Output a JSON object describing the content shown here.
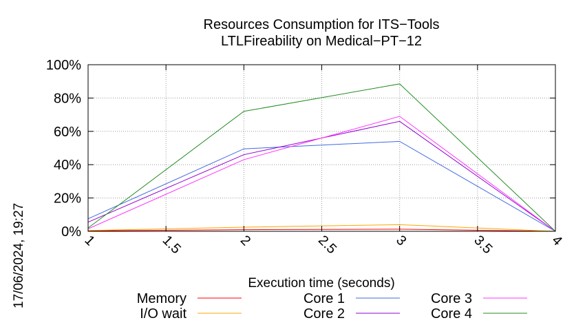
{
  "chart_data": {
    "type": "line",
    "title": "Resources Consumption for ITS−Tools",
    "subtitle": "LTLFireability on Medical−PT−12",
    "xlabel": "Execution time (seconds)",
    "ylabel": "",
    "xlim": [
      1,
      4
    ],
    "ylim": [
      0,
      100
    ],
    "x_ticks": [
      1,
      1.5,
      2,
      2.5,
      3,
      3.5,
      4
    ],
    "x_tick_labels": [
      "1",
      "1.5",
      "2",
      "2.5",
      "3",
      "3.5",
      "4"
    ],
    "y_ticks": [
      0,
      20,
      40,
      60,
      80,
      100
    ],
    "y_tick_labels": [
      "0%",
      "20%",
      "40%",
      "60%",
      "80%",
      "100%"
    ],
    "grid": true,
    "legend_position": "bottom",
    "x": [
      1,
      2,
      3,
      4
    ],
    "series": [
      {
        "name": "Memory",
        "color": "#ff0000",
        "values": [
          0.3,
          1.0,
          1.3,
          0.0
        ]
      },
      {
        "name": "I/O wait",
        "color": "#ffa500",
        "values": [
          0.5,
          2.5,
          4.0,
          0.0
        ]
      },
      {
        "name": "Core 1",
        "color": "#4169e1",
        "values": [
          7.5,
          49.5,
          54.0,
          0.0
        ]
      },
      {
        "name": "Core 2",
        "color": "#9400d3",
        "values": [
          5.5,
          46.0,
          66.0,
          0.0
        ]
      },
      {
        "name": "Core 3",
        "color": "#ff33ff",
        "values": [
          1.5,
          43.0,
          69.0,
          0.0
        ]
      },
      {
        "name": "Core 4",
        "color": "#228b22",
        "values": [
          2.0,
          72.0,
          88.5,
          0.0
        ]
      }
    ]
  },
  "timestamp": "17/06/2024, 19:27"
}
